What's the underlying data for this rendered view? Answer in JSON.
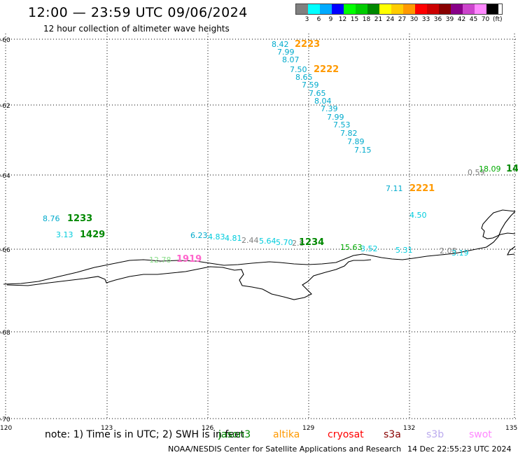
{
  "header": {
    "title": "12:00 — 23:59 UTC 09/06/2024",
    "subtitle": "12 hour collection of altimeter wave heights"
  },
  "colorbar": {
    "colors": [
      "#808080",
      "#00ffff",
      "#00aaff",
      "#0000ff",
      "#00ff00",
      "#00cc00",
      "#008800",
      "#ffff00",
      "#ffcc00",
      "#ff9900",
      "#ff0000",
      "#cc0000",
      "#880000",
      "#880088",
      "#cc44cc",
      "#ff88ff",
      "#000000"
    ],
    "ticks": [
      "3",
      "6",
      "9",
      "12",
      "15",
      "18",
      "21",
      "24",
      "27",
      "30",
      "33",
      "36",
      "39",
      "42",
      "45",
      "70"
    ],
    "unit": "(ft)"
  },
  "axes": {
    "lon_labels": [
      "120",
      "123",
      "126",
      "129",
      "132",
      "135"
    ],
    "lat_labels": [
      "-60",
      "-62",
      "-64",
      "-66",
      "-68",
      "-70"
    ]
  },
  "wave_labels": [
    {
      "text": "8.42",
      "color": "#00aacc"
    },
    {
      "text": "2223",
      "color": "#ff9900"
    },
    {
      "text": "7.99",
      "color": "#00aacc"
    },
    {
      "text": "8.07",
      "color": "#00aacc"
    },
    {
      "text": "7.50",
      "color": "#00aacc"
    },
    {
      "text": "2222",
      "color": "#ff9900"
    },
    {
      "text": "8.65",
      "color": "#00aacc"
    },
    {
      "text": "7.59",
      "color": "#00aacc"
    },
    {
      "text": "7.65",
      "color": "#00aacc"
    },
    {
      "text": "8.04",
      "color": "#00aacc"
    },
    {
      "text": "7.39",
      "color": "#00aacc"
    },
    {
      "text": "7.99",
      "color": "#00aacc"
    },
    {
      "text": "7.53",
      "color": "#00aacc"
    },
    {
      "text": "7.82",
      "color": "#00aacc"
    },
    {
      "text": "7.89",
      "color": "#00aacc"
    },
    {
      "text": "7.15",
      "color": "#00aacc"
    },
    {
      "text": "0.59",
      "color": "#808080"
    },
    {
      "text": "18.09",
      "color": "#00aa00"
    },
    {
      "text": "14",
      "color": "#008800"
    },
    {
      "text": "7.11",
      "color": "#00aacc"
    },
    {
      "text": "2221",
      "color": "#ff9900"
    },
    {
      "text": "8.76",
      "color": "#00aacc"
    },
    {
      "text": "1233",
      "color": "#008800"
    },
    {
      "text": "4.50",
      "color": "#00ccdd"
    },
    {
      "text": "3.13",
      "color": "#00ccdd"
    },
    {
      "text": "1429",
      "color": "#008800"
    },
    {
      "text": "6.23",
      "color": "#00aacc"
    },
    {
      "text": "4.83",
      "color": "#00ccdd"
    },
    {
      "text": "4.81",
      "color": "#00ccdd"
    },
    {
      "text": "2.44",
      "color": "#808080"
    },
    {
      "text": "5.64",
      "color": "#00ccdd"
    },
    {
      "text": "5.70",
      "color": "#00ccdd"
    },
    {
      "text": "2.8",
      "color": "#808080"
    },
    {
      "text": "1234",
      "color": "#008800"
    },
    {
      "text": "15.63",
      "color": "#00aa00"
    },
    {
      "text": "3.52",
      "color": "#00ccdd"
    },
    {
      "text": "5.31",
      "color": "#00ccdd"
    },
    {
      "text": "2.08",
      "color": "#808080"
    },
    {
      "text": "3.19",
      "color": "#00ccdd"
    },
    {
      "text": "12.78",
      "color": "#88dd88"
    },
    {
      "text": "1919",
      "color": "#ff66cc"
    }
  ],
  "footer": {
    "note": "note:  1) Time is in UTC;  2) SWH is in feet",
    "satellites": [
      {
        "name": "jason3",
        "color": "#008800"
      },
      {
        "name": "altika",
        "color": "#ff9900"
      },
      {
        "name": "cryosat",
        "color": "#ff0000"
      },
      {
        "name": "s3a",
        "color": "#880000"
      },
      {
        "name": "s3b",
        "color": "#bbaaee"
      },
      {
        "name": "swot",
        "color": "#ff88ff"
      }
    ],
    "credit": "NOAA/NESDIS Center for Satellite Applications and Research",
    "timestamp": "14 Dec 22:55:23 UTC 2024"
  }
}
